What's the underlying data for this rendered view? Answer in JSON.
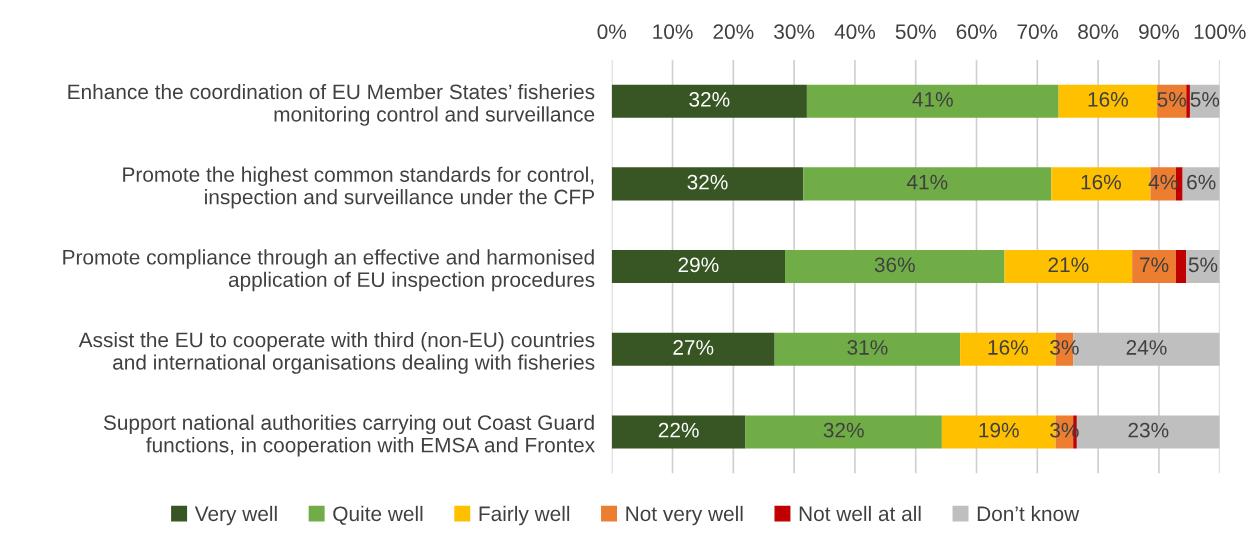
{
  "chart_data": {
    "type": "bar",
    "orientation": "horizontal",
    "stacked": true,
    "categories": [
      "Enhance the coordination of EU Member States’ fisheries\nmonitoring control and surveillance",
      "Promote the highest common standards for control,\ninspection and surveillance under the CFP",
      "Promote compliance through an effective and harmonised\napplication of EU inspection procedures",
      "Assist the EU to cooperate with third (non-EU) countries\nand international organisations dealing with fisheries",
      "Support national authorities carrying out Coast Guard\nfunctions, in cooperation with EMSA and Frontex"
    ],
    "series": [
      {
        "name": "Very well",
        "color": "#375623",
        "values": [
          32.1,
          31.5,
          28.5,
          26.8,
          22.0
        ],
        "value_labels": [
          "32%",
          "32%",
          "29%",
          "27%",
          "22%"
        ]
      },
      {
        "name": "Quite well",
        "color": "#70ad47",
        "values": [
          41.4,
          40.8,
          36.1,
          30.5,
          32.3
        ],
        "value_labels": [
          "41%",
          "41%",
          "36%",
          "31%",
          "32%"
        ]
      },
      {
        "name": "Fairly well",
        "color": "#ffc000",
        "values": [
          16.2,
          16.3,
          21.0,
          15.7,
          18.7
        ],
        "value_labels": [
          "16%",
          "16%",
          "21%",
          "16%",
          "19%"
        ]
      },
      {
        "name": "Not very well",
        "color": "#ed7d31",
        "values": [
          4.8,
          4.2,
          7.2,
          2.9,
          2.9
        ],
        "value_labels": [
          "5%",
          "4%",
          "7%",
          "3%",
          "3%"
        ]
      },
      {
        "name": "Not well at all",
        "color": "#c00000",
        "values": [
          0.6,
          1.1,
          1.7,
          0,
          0.6
        ],
        "value_labels": [
          null,
          null,
          null,
          null,
          null
        ]
      },
      {
        "name": "Don’t know",
        "color": "#bfbfbf",
        "values": [
          4.9,
          6.1,
          5.5,
          24.1,
          23.5
        ],
        "value_labels": [
          "5%",
          "6%",
          "5%",
          "24%",
          "23%"
        ]
      }
    ],
    "xlim": [
      0,
      100
    ],
    "xticks": [
      {
        "value": 0,
        "label": "0%"
      },
      {
        "value": 10,
        "label": "10%"
      },
      {
        "value": 20,
        "label": "20%"
      },
      {
        "value": 30,
        "label": "30%"
      },
      {
        "value": 40,
        "label": "40%"
      },
      {
        "value": 50,
        "label": "50%"
      },
      {
        "value": 60,
        "label": "60%"
      },
      {
        "value": 70,
        "label": "70%"
      },
      {
        "value": 80,
        "label": "80%"
      },
      {
        "value": 90,
        "label": "90%"
      },
      {
        "value": 100,
        "label": "100%"
      }
    ],
    "grid": "x",
    "legend": "bottom"
  }
}
